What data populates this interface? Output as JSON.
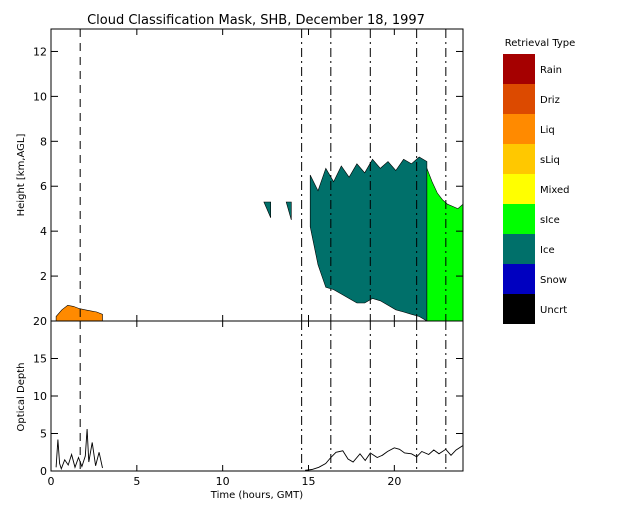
{
  "chart_data": [
    {
      "type": "heatmap",
      "title": "Cloud Classification Mask, SHB, December 18, 1997",
      "xlabel": "",
      "ylabel": "Height [km,AGL]",
      "xlim": [
        0,
        24
      ],
      "ylim": [
        0,
        13
      ],
      "xticks": [
        "0",
        "5",
        "10",
        "15",
        "20"
      ],
      "yticks": [
        "2",
        "4",
        "6",
        "8",
        "10",
        "12"
      ],
      "legend_title": "Retrieval Type",
      "legend_placement": "right",
      "legend": [
        {
          "label": "Rain",
          "color": "#a50000"
        },
        {
          "label": "Driz",
          "color": "#dc4a00"
        },
        {
          "label": "Liq",
          "color": "#ff8a00"
        },
        {
          "label": "sLiq",
          "color": "#ffc800"
        },
        {
          "label": "Mixed",
          "color": "#ffff00"
        },
        {
          "label": "sIce",
          "color": "#00ff00"
        },
        {
          "label": "Ice",
          "color": "#00706a"
        },
        {
          "label": "Snow",
          "color": "#0000c0"
        },
        {
          "label": "Uncrt",
          "color": "#000000"
        }
      ],
      "regions": [
        {
          "class": "Liq",
          "time_start": 0.3,
          "time_end": 3.0,
          "top_height_km": [
            0.2,
            0.5,
            0.7,
            0.65,
            0.55,
            0.5,
            0.45,
            0.4,
            0.3
          ]
        },
        {
          "class": "Ice",
          "time_start": 15.1,
          "time_end": 21.9,
          "top_height_km": [
            6.5,
            5.8,
            6.8,
            6.2,
            6.9,
            6.4,
            7.0,
            6.6,
            7.2,
            6.8,
            7.1,
            6.7,
            7.2,
            7.0,
            7.3,
            7.1
          ],
          "base_height_km": [
            4.2,
            2.5,
            1.5,
            1.4,
            1.2,
            1.0,
            0.8,
            0.8,
            1.0,
            0.9,
            0.7,
            0.5,
            0.4,
            0.3,
            0.2,
            0.0
          ]
        },
        {
          "class": "sIce",
          "time_start": 21.9,
          "time_end": 24.0,
          "top_height_km": [
            6.8,
            6.2,
            5.7,
            5.4,
            5.2,
            5.1,
            5.0,
            5.2
          ],
          "base_height_km": [
            0.0,
            0.0
          ]
        },
        {
          "class": "Ice",
          "time_start": 12.4,
          "time_end": 12.8,
          "top_height_km": [
            5.3
          ],
          "base_height_km": [
            4.6
          ]
        },
        {
          "class": "Ice",
          "time_start": 13.7,
          "time_end": 14.0,
          "top_height_km": [
            5.3
          ],
          "base_height_km": [
            4.5
          ]
        }
      ],
      "event_lines_hours": [
        1.7,
        14.6,
        16.3,
        18.6,
        21.3,
        23.0
      ],
      "grid": false
    },
    {
      "type": "line",
      "xlabel": "Time (hours, GMT)",
      "ylabel": "Optical Depth",
      "xlim": [
        0,
        24
      ],
      "ylim": [
        0,
        20
      ],
      "xticks": [
        "0",
        "5",
        "10",
        "15",
        "20"
      ],
      "yticks": [
        "0",
        "5",
        "10",
        "15",
        "20"
      ],
      "series": [
        {
          "x": [
            0.3,
            0.4,
            0.5,
            0.6,
            0.8,
            1.0,
            1.2,
            1.4,
            1.6,
            1.8,
            2.0,
            2.1,
            2.2,
            2.4,
            2.6,
            2.8,
            3.0,
            14.8,
            15.2,
            15.6,
            16.0,
            16.3,
            16.6,
            17.0,
            17.3,
            17.6,
            18.0,
            18.3,
            18.6,
            19.0,
            19.3,
            19.6,
            20.0,
            20.3,
            20.6,
            21.0,
            21.3,
            21.6,
            22.0,
            22.3,
            22.6,
            23.0,
            23.3,
            23.6,
            24.0
          ],
          "y": [
            0.5,
            4.2,
            1.0,
            0.3,
            1.5,
            0.8,
            2.2,
            0.5,
            1.8,
            0.6,
            2.0,
            5.6,
            1.2,
            3.8,
            0.7,
            2.5,
            0.4,
            0.1,
            0.2,
            0.5,
            1.0,
            1.8,
            2.5,
            2.7,
            1.6,
            1.2,
            2.3,
            1.4,
            2.4,
            1.8,
            2.1,
            2.6,
            3.1,
            2.9,
            2.4,
            2.3,
            1.9,
            2.6,
            2.2,
            2.8,
            2.3,
            2.9,
            2.1,
            2.8,
            3.4
          ]
        }
      ],
      "event_lines_hours": [
        1.7,
        14.6,
        16.3,
        18.6,
        21.3,
        23.0
      ],
      "grid": false
    }
  ]
}
